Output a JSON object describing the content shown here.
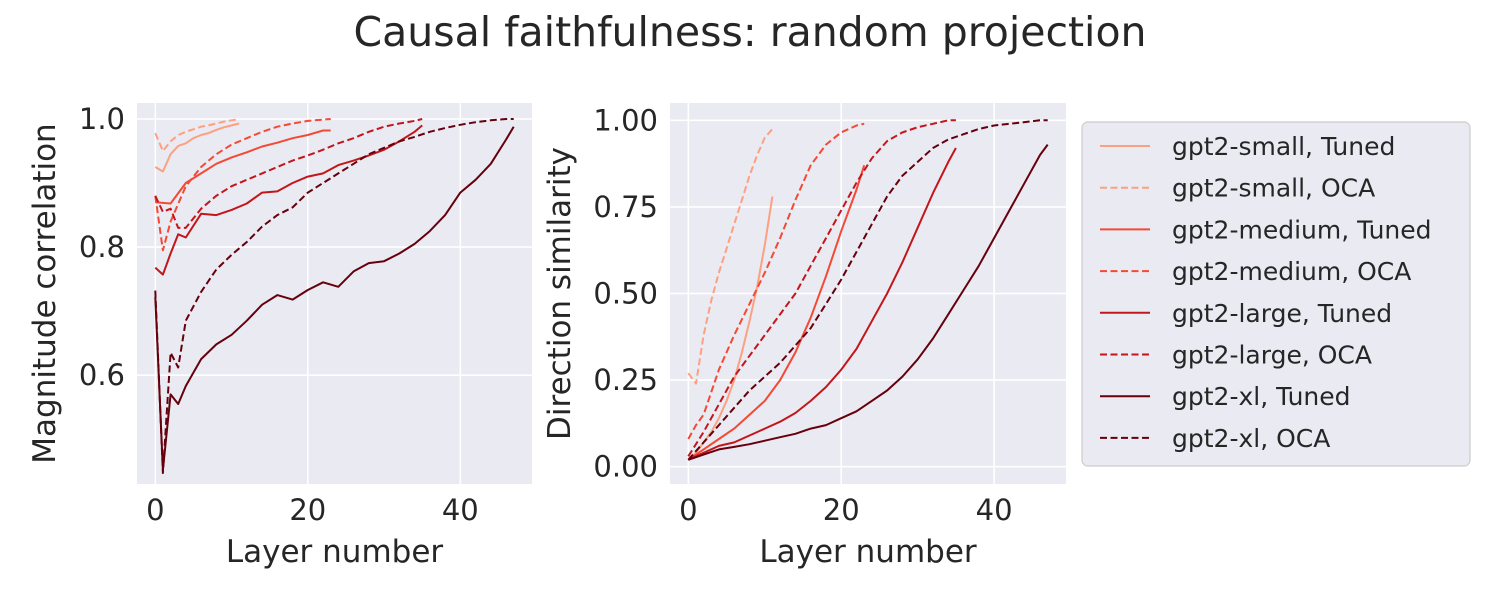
{
  "title": "Causal faithfulness: random projection",
  "chart_data": [
    {
      "type": "line",
      "xlabel": "Layer number",
      "ylabel": "Magnitude correlation",
      "xlim": [
        -2.4,
        49.4
      ],
      "ylim": [
        0.43,
        1.025
      ],
      "xticks": [
        0,
        20,
        40
      ],
      "yticks": [
        0.6,
        0.8,
        1.0
      ],
      "ytick_labels": [
        "0.6",
        "0.8",
        "1.0"
      ],
      "grid": true,
      "series": [
        {
          "name": "gpt2-small, Tuned",
          "x": [
            0,
            1,
            2,
            3,
            4,
            5,
            6,
            7,
            8,
            9,
            10,
            11
          ],
          "y": [
            0.925,
            0.918,
            0.945,
            0.958,
            0.962,
            0.97,
            0.975,
            0.978,
            0.983,
            0.987,
            0.99,
            0.993
          ]
        },
        {
          "name": "gpt2-small, OCA",
          "x": [
            0,
            1,
            2,
            3,
            4,
            5,
            6,
            7,
            8,
            9,
            10,
            11
          ],
          "y": [
            0.978,
            0.95,
            0.965,
            0.975,
            0.98,
            0.984,
            0.988,
            0.99,
            0.993,
            0.996,
            0.998,
            1.0
          ]
        },
        {
          "name": "gpt2-medium, Tuned",
          "x": [
            0,
            2,
            4,
            6,
            8,
            10,
            12,
            14,
            16,
            18,
            20,
            22,
            23
          ],
          "y": [
            0.87,
            0.868,
            0.9,
            0.915,
            0.93,
            0.94,
            0.948,
            0.957,
            0.963,
            0.97,
            0.975,
            0.982,
            0.982
          ]
        },
        {
          "name": "gpt2-medium, OCA",
          "x": [
            0,
            1,
            2,
            4,
            6,
            8,
            10,
            12,
            14,
            16,
            18,
            20,
            22,
            23
          ],
          "y": [
            0.88,
            0.795,
            0.84,
            0.895,
            0.925,
            0.945,
            0.96,
            0.97,
            0.98,
            0.988,
            0.993,
            0.997,
            0.999,
            1.0
          ]
        },
        {
          "name": "gpt2-large, Tuned",
          "x": [
            0,
            1,
            2,
            3,
            4,
            6,
            8,
            10,
            12,
            14,
            16,
            18,
            20,
            22,
            24,
            26,
            28,
            30,
            32,
            34,
            35
          ],
          "y": [
            0.768,
            0.757,
            0.79,
            0.82,
            0.815,
            0.852,
            0.85,
            0.858,
            0.868,
            0.885,
            0.887,
            0.9,
            0.91,
            0.915,
            0.928,
            0.935,
            0.943,
            0.952,
            0.965,
            0.98,
            0.99
          ]
        },
        {
          "name": "gpt2-large, OCA",
          "x": [
            0,
            1,
            2,
            3,
            4,
            6,
            8,
            10,
            12,
            14,
            16,
            18,
            20,
            22,
            24,
            26,
            28,
            30,
            32,
            34,
            35
          ],
          "y": [
            0.88,
            0.855,
            0.86,
            0.83,
            0.83,
            0.86,
            0.88,
            0.895,
            0.905,
            0.915,
            0.925,
            0.935,
            0.943,
            0.952,
            0.962,
            0.97,
            0.98,
            0.988,
            0.993,
            0.997,
            1.0
          ]
        },
        {
          "name": "gpt2-xl, Tuned",
          "x": [
            0,
            1,
            2,
            3,
            4,
            6,
            8,
            10,
            12,
            14,
            16,
            18,
            20,
            22,
            24,
            26,
            28,
            30,
            32,
            34,
            36,
            38,
            40,
            42,
            44,
            46,
            47
          ],
          "y": [
            0.722,
            0.452,
            0.57,
            0.555,
            0.583,
            0.625,
            0.648,
            0.663,
            0.685,
            0.71,
            0.725,
            0.718,
            0.733,
            0.745,
            0.738,
            0.762,
            0.775,
            0.778,
            0.79,
            0.805,
            0.825,
            0.85,
            0.885,
            0.905,
            0.93,
            0.968,
            0.988
          ]
        },
        {
          "name": "gpt2-xl, OCA",
          "x": [
            0,
            1,
            2,
            3,
            4,
            6,
            8,
            10,
            12,
            14,
            16,
            18,
            20,
            22,
            24,
            26,
            28,
            30,
            32,
            34,
            36,
            38,
            40,
            42,
            44,
            46,
            47
          ],
          "y": [
            0.732,
            0.447,
            0.635,
            0.612,
            0.685,
            0.73,
            0.765,
            0.788,
            0.808,
            0.832,
            0.85,
            0.862,
            0.885,
            0.9,
            0.915,
            0.93,
            0.945,
            0.955,
            0.965,
            0.972,
            0.98,
            0.986,
            0.991,
            0.995,
            0.998,
            1.0,
            1.0
          ]
        }
      ]
    },
    {
      "type": "line",
      "xlabel": "Layer number",
      "ylabel": "Direction similarity",
      "xlim": [
        -2.4,
        49.4
      ],
      "ylim": [
        -0.05,
        1.05
      ],
      "xticks": [
        0,
        20,
        40
      ],
      "yticks": [
        0.0,
        0.25,
        0.5,
        0.75,
        1.0
      ],
      "ytick_labels": [
        "0.00",
        "0.25",
        "0.50",
        "0.75",
        "1.00"
      ],
      "grid": true,
      "series": [
        {
          "name": "gpt2-small, Tuned",
          "x": [
            0,
            1,
            2,
            3,
            4,
            5,
            6,
            7,
            8,
            9,
            10,
            11
          ],
          "y": [
            0.02,
            0.04,
            0.07,
            0.1,
            0.14,
            0.19,
            0.25,
            0.33,
            0.42,
            0.52,
            0.64,
            0.78
          ]
        },
        {
          "name": "gpt2-small, OCA",
          "x": [
            0,
            1,
            2,
            3,
            4,
            5,
            6,
            7,
            8,
            9,
            10,
            11
          ],
          "y": [
            0.27,
            0.24,
            0.38,
            0.48,
            0.56,
            0.63,
            0.7,
            0.77,
            0.84,
            0.9,
            0.95,
            0.975
          ]
        },
        {
          "name": "gpt2-medium, Tuned",
          "x": [
            0,
            2,
            4,
            6,
            8,
            10,
            12,
            14,
            16,
            18,
            20,
            22,
            23
          ],
          "y": [
            0.02,
            0.05,
            0.08,
            0.11,
            0.15,
            0.19,
            0.25,
            0.33,
            0.43,
            0.55,
            0.68,
            0.8,
            0.87
          ]
        },
        {
          "name": "gpt2-medium, OCA",
          "x": [
            0,
            1,
            2,
            4,
            6,
            8,
            10,
            12,
            14,
            16,
            18,
            20,
            22,
            23
          ],
          "y": [
            0.08,
            0.12,
            0.15,
            0.28,
            0.38,
            0.47,
            0.56,
            0.66,
            0.77,
            0.87,
            0.93,
            0.965,
            0.985,
            0.99
          ]
        },
        {
          "name": "gpt2-large, Tuned",
          "x": [
            0,
            2,
            4,
            6,
            8,
            10,
            12,
            14,
            16,
            18,
            20,
            22,
            24,
            26,
            28,
            30,
            32,
            34,
            35
          ],
          "y": [
            0.02,
            0.04,
            0.06,
            0.07,
            0.09,
            0.11,
            0.13,
            0.155,
            0.19,
            0.23,
            0.28,
            0.34,
            0.42,
            0.5,
            0.59,
            0.69,
            0.79,
            0.88,
            0.92
          ]
        },
        {
          "name": "gpt2-large, OCA",
          "x": [
            0,
            2,
            4,
            6,
            8,
            10,
            12,
            14,
            16,
            18,
            20,
            22,
            24,
            26,
            28,
            30,
            32,
            34,
            35
          ],
          "y": [
            0.03,
            0.1,
            0.18,
            0.26,
            0.32,
            0.38,
            0.44,
            0.5,
            0.58,
            0.66,
            0.74,
            0.82,
            0.89,
            0.94,
            0.965,
            0.98,
            0.99,
            1.0,
            1.0
          ]
        },
        {
          "name": "gpt2-xl, Tuned",
          "x": [
            0,
            2,
            4,
            6,
            8,
            10,
            12,
            14,
            16,
            18,
            20,
            22,
            24,
            26,
            28,
            30,
            32,
            34,
            36,
            38,
            40,
            42,
            44,
            46,
            47
          ],
          "y": [
            0.02,
            0.035,
            0.05,
            0.057,
            0.065,
            0.075,
            0.085,
            0.095,
            0.11,
            0.12,
            0.14,
            0.16,
            0.19,
            0.22,
            0.26,
            0.31,
            0.37,
            0.44,
            0.51,
            0.58,
            0.66,
            0.74,
            0.82,
            0.9,
            0.93
          ]
        },
        {
          "name": "gpt2-xl, OCA",
          "x": [
            0,
            2,
            4,
            6,
            8,
            10,
            12,
            14,
            16,
            18,
            20,
            22,
            24,
            26,
            28,
            30,
            32,
            34,
            36,
            38,
            40,
            42,
            44,
            46,
            47
          ],
          "y": [
            0.02,
            0.07,
            0.12,
            0.17,
            0.22,
            0.26,
            0.3,
            0.35,
            0.4,
            0.47,
            0.54,
            0.62,
            0.7,
            0.78,
            0.84,
            0.88,
            0.92,
            0.945,
            0.96,
            0.975,
            0.985,
            0.99,
            0.995,
            1.0,
            1.0
          ]
        }
      ]
    }
  ],
  "legend": {
    "placement": "right",
    "entries": [
      {
        "label": "gpt2-small, Tuned",
        "color": "#fca082",
        "dash": "solid"
      },
      {
        "label": "gpt2-small, OCA",
        "color": "#fca082",
        "dash": "dashed"
      },
      {
        "label": "gpt2-medium, Tuned",
        "color": "#f34935",
        "dash": "solid"
      },
      {
        "label": "gpt2-medium, OCA",
        "color": "#f34935",
        "dash": "dashed"
      },
      {
        "label": "gpt2-large, Tuned",
        "color": "#c3161b",
        "dash": "solid"
      },
      {
        "label": "gpt2-large, OCA",
        "color": "#c3161b",
        "dash": "dashed"
      },
      {
        "label": "gpt2-xl, Tuned",
        "color": "#67000d",
        "dash": "solid"
      },
      {
        "label": "gpt2-xl, OCA",
        "color": "#67000d",
        "dash": "dashed"
      }
    ]
  }
}
